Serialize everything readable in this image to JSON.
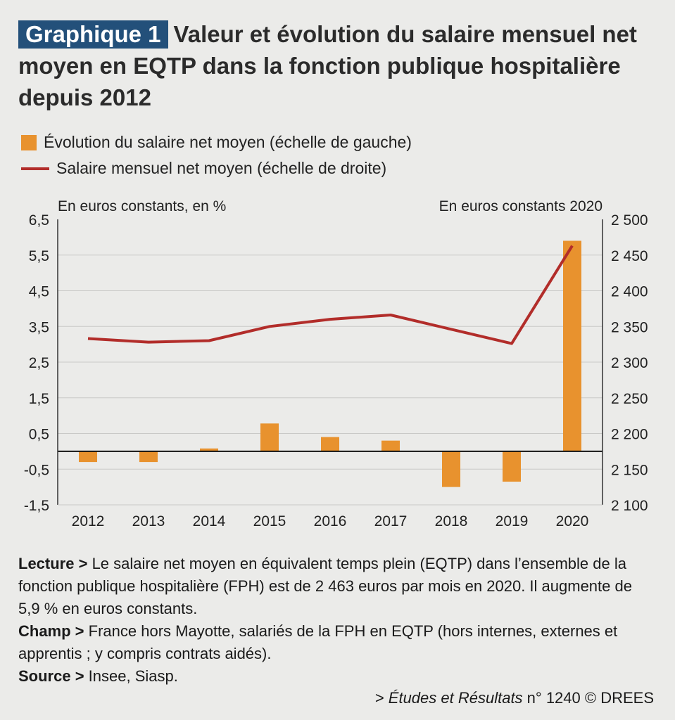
{
  "header": {
    "badge": "Graphique 1",
    "title": "Valeur et évolution du salaire mensuel net moyen en EQTP dans la fonction publique hospitalière depuis 2012"
  },
  "legend": {
    "bar_label": "Évolution du salaire net moyen (échelle de gauche)",
    "line_label": "Salaire mensuel net moyen (échelle de droite)"
  },
  "chart_data": {
    "type": "bar",
    "left_axis_label": "En euros constants, en %",
    "right_axis_label": "En euros constants 2020",
    "categories": [
      "2012",
      "2013",
      "2014",
      "2015",
      "2016",
      "2017",
      "2018",
      "2019",
      "2020"
    ],
    "ylim_left": [
      -1.5,
      6.5
    ],
    "yticks_left": [
      "6,5",
      "5,5",
      "4,5",
      "3,5",
      "2,5",
      "1,5",
      "0,5",
      "-0,5",
      "-1,5"
    ],
    "ylim_right": [
      2100,
      2500
    ],
    "yticks_right": [
      "2 500",
      "2 450",
      "2 400",
      "2 350",
      "2 300",
      "2 250",
      "2 200",
      "2 150",
      "2 100"
    ],
    "series": [
      {
        "name": "Évolution du salaire net moyen (échelle de gauche)",
        "type": "bar",
        "axis": "left",
        "color": "#e8922e",
        "values": [
          -0.3,
          -0.3,
          0.08,
          0.78,
          0.4,
          0.3,
          -1.0,
          -0.85,
          5.9
        ]
      },
      {
        "name": "Salaire mensuel net moyen (échelle de droite)",
        "type": "line",
        "axis": "right",
        "color": "#b22d2a",
        "values": [
          2333,
          2328,
          2330,
          2350,
          2360,
          2366,
          2346,
          2326,
          2463
        ]
      }
    ],
    "grid": "horizontal"
  },
  "notes": {
    "lecture_label": "Lecture >",
    "lecture_text": "Le salaire net moyen en équivalent temps plein (EQTP) dans l’ensemble de la fonction publique hospitalière (FPH) est de 2 463 euros par mois en 2020. Il augmente de 5,9 % en euros constants.",
    "champ_label": "Champ >",
    "champ_text": "France hors Mayotte, salariés de la FPH en EQTP (hors internes, externes et apprentis ; y compris contrats aidés).",
    "source_label": "Source >",
    "source_text": "Insee, Siasp."
  },
  "footer": {
    "prefix": "> ",
    "publication": "Études et Résultats",
    "suffix": " n° 1240 © DREES"
  }
}
